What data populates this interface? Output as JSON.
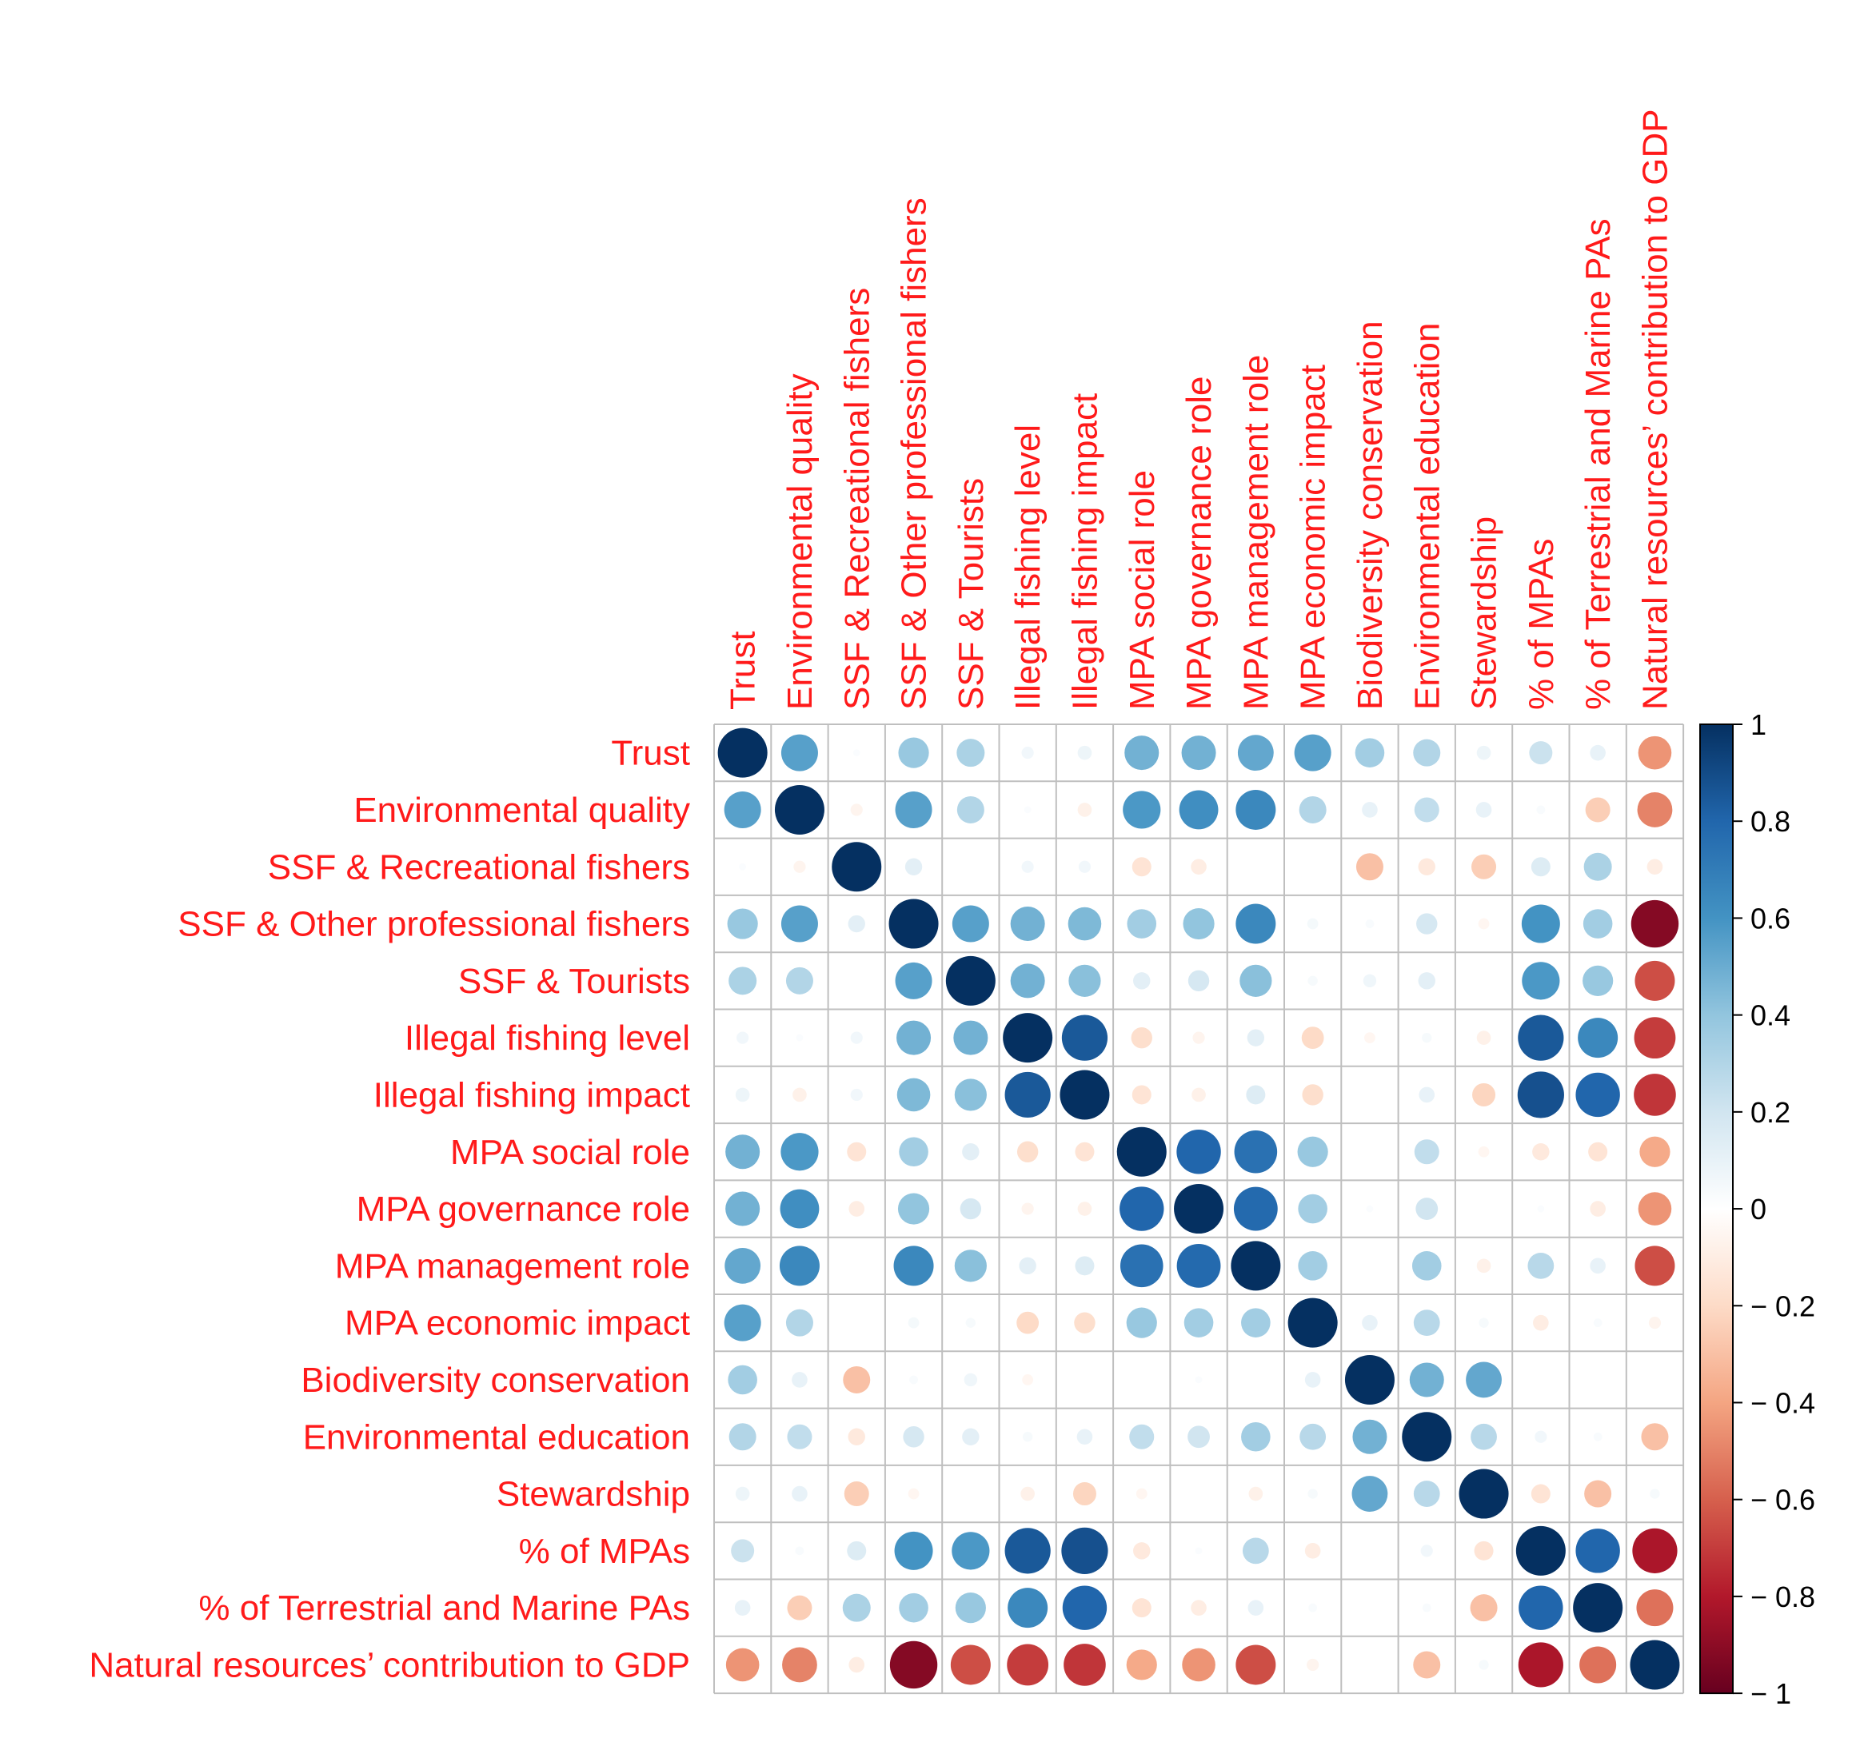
{
  "chart_data": {
    "type": "heatmap",
    "subtype": "correlation-circle-matrix",
    "title": "",
    "variables": [
      "Trust",
      "Environmental quality",
      "SSF & Recreational fishers",
      "SSF & Other professional fishers",
      "SSF & Tourists",
      "Illegal fishing level",
      "Illegal fishing impact",
      "MPA social role",
      "MPA governance role",
      "MPA management role",
      "MPA economic impact",
      "Biodiversity conservation",
      "Environmental education",
      "Stewardship",
      "% of MPAs",
      "% of Terrestrial and Marine PAs",
      "Natural resources’ contribution to GDP"
    ],
    "matrix": [
      [
        1,
        0.55,
        0.02,
        0.38,
        0.32,
        0.06,
        0.08,
        0.48,
        0.48,
        0.52,
        0.55,
        0.35,
        0.3,
        0.08,
        0.22,
        0.1,
        -0.45
      ],
      [
        0.55,
        1,
        -0.06,
        0.55,
        0.3,
        0.02,
        -0.08,
        0.58,
        0.62,
        0.65,
        0.3,
        0.1,
        0.25,
        0.1,
        0.03,
        -0.25,
        -0.5
      ],
      [
        0.02,
        -0.06,
        1,
        0.12,
        0,
        0.06,
        0.06,
        -0.15,
        -0.1,
        0,
        0,
        -0.3,
        -0.12,
        -0.25,
        0.15,
        0.32,
        -0.1
      ],
      [
        0.38,
        0.55,
        0.12,
        1,
        0.55,
        0.48,
        0.45,
        0.35,
        0.4,
        0.65,
        0.05,
        0.03,
        0.18,
        -0.05,
        0.6,
        0.35,
        -0.92
      ],
      [
        0.32,
        0.3,
        0,
        0.55,
        1,
        0.48,
        0.42,
        0.12,
        0.18,
        0.42,
        0.04,
        0.07,
        0.12,
        0,
        0.58,
        0.38,
        -0.65
      ],
      [
        0.06,
        0.02,
        0.06,
        0.48,
        0.48,
        1,
        0.85,
        -0.18,
        -0.06,
        0.12,
        -0.2,
        -0.05,
        0.04,
        -0.08,
        0.85,
        0.65,
        -0.7
      ],
      [
        0.08,
        -0.08,
        0.06,
        0.45,
        0.42,
        0.85,
        1,
        -0.15,
        -0.08,
        0.15,
        -0.18,
        0,
        0.1,
        -0.22,
        0.88,
        0.8,
        -0.72
      ],
      [
        0.48,
        0.58,
        -0.15,
        0.35,
        0.12,
        -0.18,
        -0.15,
        1,
        0.8,
        0.75,
        0.38,
        0,
        0.25,
        -0.05,
        -0.12,
        -0.15,
        -0.38
      ],
      [
        0.48,
        0.62,
        -0.1,
        0.4,
        0.18,
        -0.06,
        -0.08,
        0.8,
        1,
        0.78,
        0.35,
        0.02,
        0.2,
        0,
        0.02,
        -0.1,
        -0.45
      ],
      [
        0.52,
        0.65,
        0,
        0.65,
        0.42,
        0.12,
        0.15,
        0.75,
        0.78,
        1,
        0.35,
        0,
        0.35,
        -0.08,
        0.28,
        0.1,
        -0.65
      ],
      [
        0.55,
        0.3,
        0,
        0.05,
        0.04,
        -0.2,
        -0.18,
        0.38,
        0.35,
        0.35,
        1,
        0.1,
        0.28,
        0.04,
        -0.1,
        0.03,
        -0.06
      ],
      [
        0.35,
        0.1,
        -0.3,
        0.03,
        0.07,
        -0.05,
        0,
        0,
        0.02,
        0,
        0.1,
        1,
        0.48,
        0.52,
        0,
        0,
        0
      ],
      [
        0.3,
        0.25,
        -0.12,
        0.18,
        0.12,
        0.04,
        0.1,
        0.25,
        0.2,
        0.35,
        0.28,
        0.48,
        1,
        0.28,
        0.06,
        0.03,
        -0.3
      ],
      [
        0.08,
        0.1,
        -0.25,
        -0.05,
        0,
        -0.08,
        -0.22,
        -0.05,
        0,
        -0.08,
        0.04,
        0.52,
        0.28,
        1,
        -0.15,
        -0.3,
        0.04
      ],
      [
        0.22,
        0.03,
        0.15,
        0.6,
        0.58,
        0.85,
        0.88,
        -0.12,
        0.02,
        0.28,
        -0.1,
        0,
        0.06,
        -0.15,
        1,
        0.8,
        -0.82
      ],
      [
        0.1,
        -0.25,
        0.32,
        0.35,
        0.38,
        0.65,
        0.8,
        -0.15,
        -0.1,
        0.1,
        0.03,
        0,
        0.03,
        -0.3,
        0.8,
        1,
        -0.55
      ],
      [
        -0.45,
        -0.5,
        -0.1,
        -0.92,
        -0.65,
        -0.7,
        -0.72,
        -0.38,
        -0.45,
        -0.65,
        -0.06,
        0,
        -0.3,
        0.04,
        -0.82,
        -0.55,
        1
      ]
    ],
    "colorbar": {
      "range": [
        -1,
        1
      ],
      "ticks": [
        "1",
        "0.8",
        "0.6",
        "0.4",
        "0.2",
        "0",
        "− 0.2",
        "− 0.4",
        "− 0.6",
        "− 0.8",
        "− 1"
      ],
      "tick_values": [
        1,
        0.8,
        0.6,
        0.4,
        0.2,
        0,
        -0.2,
        -0.4,
        -0.6,
        -0.8,
        -1
      ]
    },
    "colors": {
      "label_color": "#ff1a1a",
      "grid_color": "#bfbfbf",
      "tick_color": "#000000",
      "scale": [
        "#67001f",
        "#b2182b",
        "#d6604d",
        "#f4a582",
        "#fddbc7",
        "#ffffff",
        "#d1e5f0",
        "#92c5de",
        "#4393c3",
        "#2166ac",
        "#053061"
      ]
    },
    "legend": "right"
  }
}
